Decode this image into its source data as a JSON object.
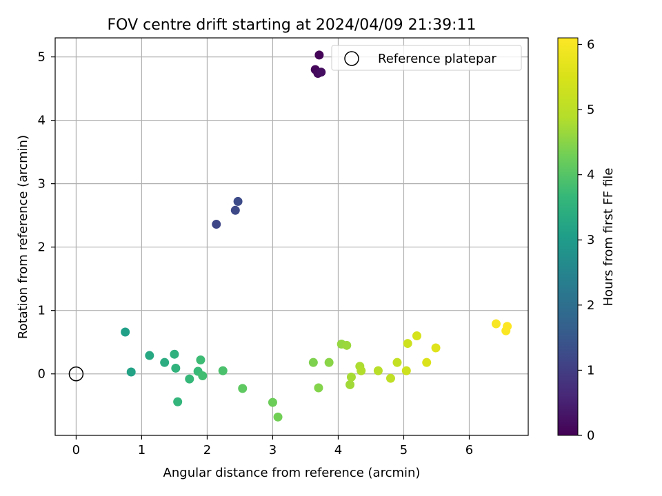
{
  "chart_data": {
    "type": "scatter",
    "title": "FOV centre drift starting at 2024/04/09 21:39:11",
    "xlabel": "Angular distance from reference (arcmin)",
    "ylabel": "Rotation from reference (arcmin)",
    "xlim": [
      -0.32,
      6.9
    ],
    "ylim": [
      -0.97,
      5.3
    ],
    "xticks": [
      0,
      1,
      2,
      3,
      4,
      5,
      6
    ],
    "yticks": [
      0,
      1,
      2,
      3,
      4,
      5
    ],
    "grid": true,
    "legend": {
      "position": "top-right",
      "entries": [
        "Reference platepar"
      ]
    },
    "reference_point": {
      "x": 0,
      "y": 0
    },
    "colorbar": {
      "label": "Hours from first FF file",
      "min": 0,
      "max": 6.1,
      "ticks": [
        0,
        1,
        2,
        3,
        4,
        5,
        6
      ],
      "colormap": "viridis"
    },
    "points": [
      {
        "x": 3.71,
        "y": 5.03,
        "c": 0.05
      },
      {
        "x": 3.65,
        "y": 4.8,
        "c": 0.1
      },
      {
        "x": 3.69,
        "y": 4.74,
        "c": 0.15
      },
      {
        "x": 3.74,
        "y": 4.76,
        "c": 0.2
      },
      {
        "x": 2.14,
        "y": 2.36,
        "c": 1.15
      },
      {
        "x": 2.43,
        "y": 2.58,
        "c": 1.2
      },
      {
        "x": 2.47,
        "y": 2.72,
        "c": 1.25
      },
      {
        "x": 0.75,
        "y": 0.66,
        "c": 3.1
      },
      {
        "x": 0.84,
        "y": 0.03,
        "c": 3.15
      },
      {
        "x": 1.12,
        "y": 0.29,
        "c": 3.3
      },
      {
        "x": 1.35,
        "y": 0.18,
        "c": 3.4
      },
      {
        "x": 1.5,
        "y": 0.31,
        "c": 3.5
      },
      {
        "x": 1.52,
        "y": 0.09,
        "c": 3.55
      },
      {
        "x": 1.55,
        "y": -0.44,
        "c": 3.6
      },
      {
        "x": 1.73,
        "y": -0.08,
        "c": 3.65
      },
      {
        "x": 1.86,
        "y": 0.04,
        "c": 3.7
      },
      {
        "x": 1.9,
        "y": 0.22,
        "c": 3.75
      },
      {
        "x": 1.93,
        "y": -0.03,
        "c": 3.8
      },
      {
        "x": 2.24,
        "y": 0.05,
        "c": 3.9
      },
      {
        "x": 2.54,
        "y": -0.23,
        "c": 4.1
      },
      {
        "x": 3.0,
        "y": -0.45,
        "c": 4.25
      },
      {
        "x": 3.08,
        "y": -0.68,
        "c": 4.3
      },
      {
        "x": 3.62,
        "y": 0.18,
        "c": 4.4
      },
      {
        "x": 3.7,
        "y": -0.22,
        "c": 4.45
      },
      {
        "x": 3.86,
        "y": 0.18,
        "c": 4.5
      },
      {
        "x": 4.05,
        "y": 0.47,
        "c": 4.6
      },
      {
        "x": 4.13,
        "y": 0.45,
        "c": 4.65
      },
      {
        "x": 4.18,
        "y": -0.17,
        "c": 4.7
      },
      {
        "x": 4.2,
        "y": -0.05,
        "c": 4.75
      },
      {
        "x": 4.33,
        "y": 0.12,
        "c": 4.8
      },
      {
        "x": 4.35,
        "y": 0.05,
        "c": 4.85
      },
      {
        "x": 4.61,
        "y": 0.05,
        "c": 4.95
      },
      {
        "x": 4.8,
        "y": -0.07,
        "c": 5.05
      },
      {
        "x": 4.9,
        "y": 0.18,
        "c": 5.15
      },
      {
        "x": 5.04,
        "y": 0.05,
        "c": 5.3
      },
      {
        "x": 5.06,
        "y": 0.48,
        "c": 5.3
      },
      {
        "x": 5.2,
        "y": 0.6,
        "c": 5.45
      },
      {
        "x": 5.35,
        "y": 0.18,
        "c": 5.55
      },
      {
        "x": 5.49,
        "y": 0.41,
        "c": 5.6
      },
      {
        "x": 6.41,
        "y": 0.79,
        "c": 6.0
      },
      {
        "x": 6.56,
        "y": 0.68,
        "c": 6.05
      },
      {
        "x": 6.58,
        "y": 0.75,
        "c": 6.1
      }
    ]
  }
}
